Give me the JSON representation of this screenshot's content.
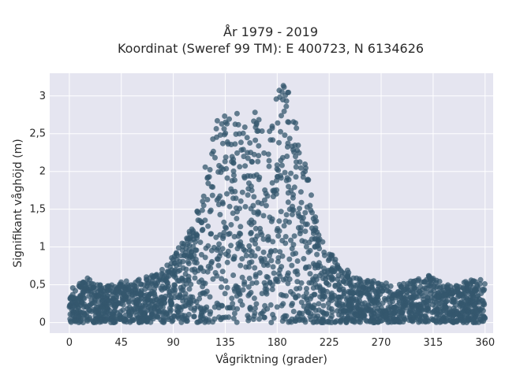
{
  "chart_data": {
    "type": "scatter",
    "title": [
      "År 1979 - 2019",
      "Koordinat (Sweref 99 TM): E 400723, N 6134626"
    ],
    "xlabel": "Vågriktning (grader)",
    "ylabel": "Signifikant våghöjd (m)",
    "xlim": [
      -17,
      367
    ],
    "ylim": [
      -0.14,
      3.3
    ],
    "xticks": [
      0,
      45,
      90,
      135,
      180,
      225,
      270,
      315,
      360
    ],
    "xtick_labels": [
      "0",
      "45",
      "90",
      "135",
      "180",
      "225",
      "270",
      "315",
      "360"
    ],
    "yticks": [
      0,
      0.5,
      1,
      1.5,
      2,
      2.5,
      3
    ],
    "ytick_labels": [
      "0",
      "0,5",
      "1",
      "1,5",
      "2",
      "2,5",
      "3"
    ],
    "grid": true,
    "colors": {
      "marker": "#34576e",
      "plot_bg": "#e5e5f0",
      "grid": "#ffffff"
    },
    "series": [
      {
        "x": [
          0,
          5,
          10,
          15,
          20,
          25,
          30,
          35,
          40,
          45,
          50,
          55,
          60,
          65,
          70,
          75,
          80,
          85,
          90,
          95,
          100,
          105,
          110,
          115,
          120,
          125,
          130,
          135,
          140,
          145,
          150,
          155,
          160,
          165,
          170,
          175,
          180,
          185,
          190,
          195,
          200,
          205,
          210,
          215,
          220,
          225,
          230,
          235,
          240,
          245,
          250,
          255,
          260,
          265,
          270,
          275,
          280,
          285,
          290,
          295,
          300,
          305,
          310,
          315,
          320,
          325,
          330,
          335,
          340,
          345,
          350,
          355,
          360
        ],
        "y_max": [
          0.52,
          0.55,
          0.58,
          0.6,
          0.55,
          0.52,
          0.5,
          0.5,
          0.52,
          0.55,
          0.55,
          0.55,
          0.57,
          0.6,
          0.62,
          0.65,
          0.7,
          0.8,
          0.9,
          1.0,
          1.1,
          1.25,
          1.5,
          1.9,
          2.3,
          2.6,
          2.8,
          2.85,
          2.8,
          2.85,
          2.7,
          2.55,
          2.8,
          2.75,
          2.6,
          2.7,
          3.05,
          3.15,
          3.05,
          2.7,
          2.4,
          2.1,
          1.7,
          1.3,
          1.05,
          0.95,
          0.85,
          0.75,
          0.7,
          0.65,
          0.6,
          0.58,
          0.55,
          0.55,
          0.55,
          0.52,
          0.5,
          0.5,
          0.52,
          0.55,
          0.58,
          0.6,
          0.62,
          0.63,
          0.55,
          0.5,
          0.5,
          0.52,
          0.55,
          0.55,
          0.58,
          0.6,
          0.55
        ]
      }
    ]
  }
}
